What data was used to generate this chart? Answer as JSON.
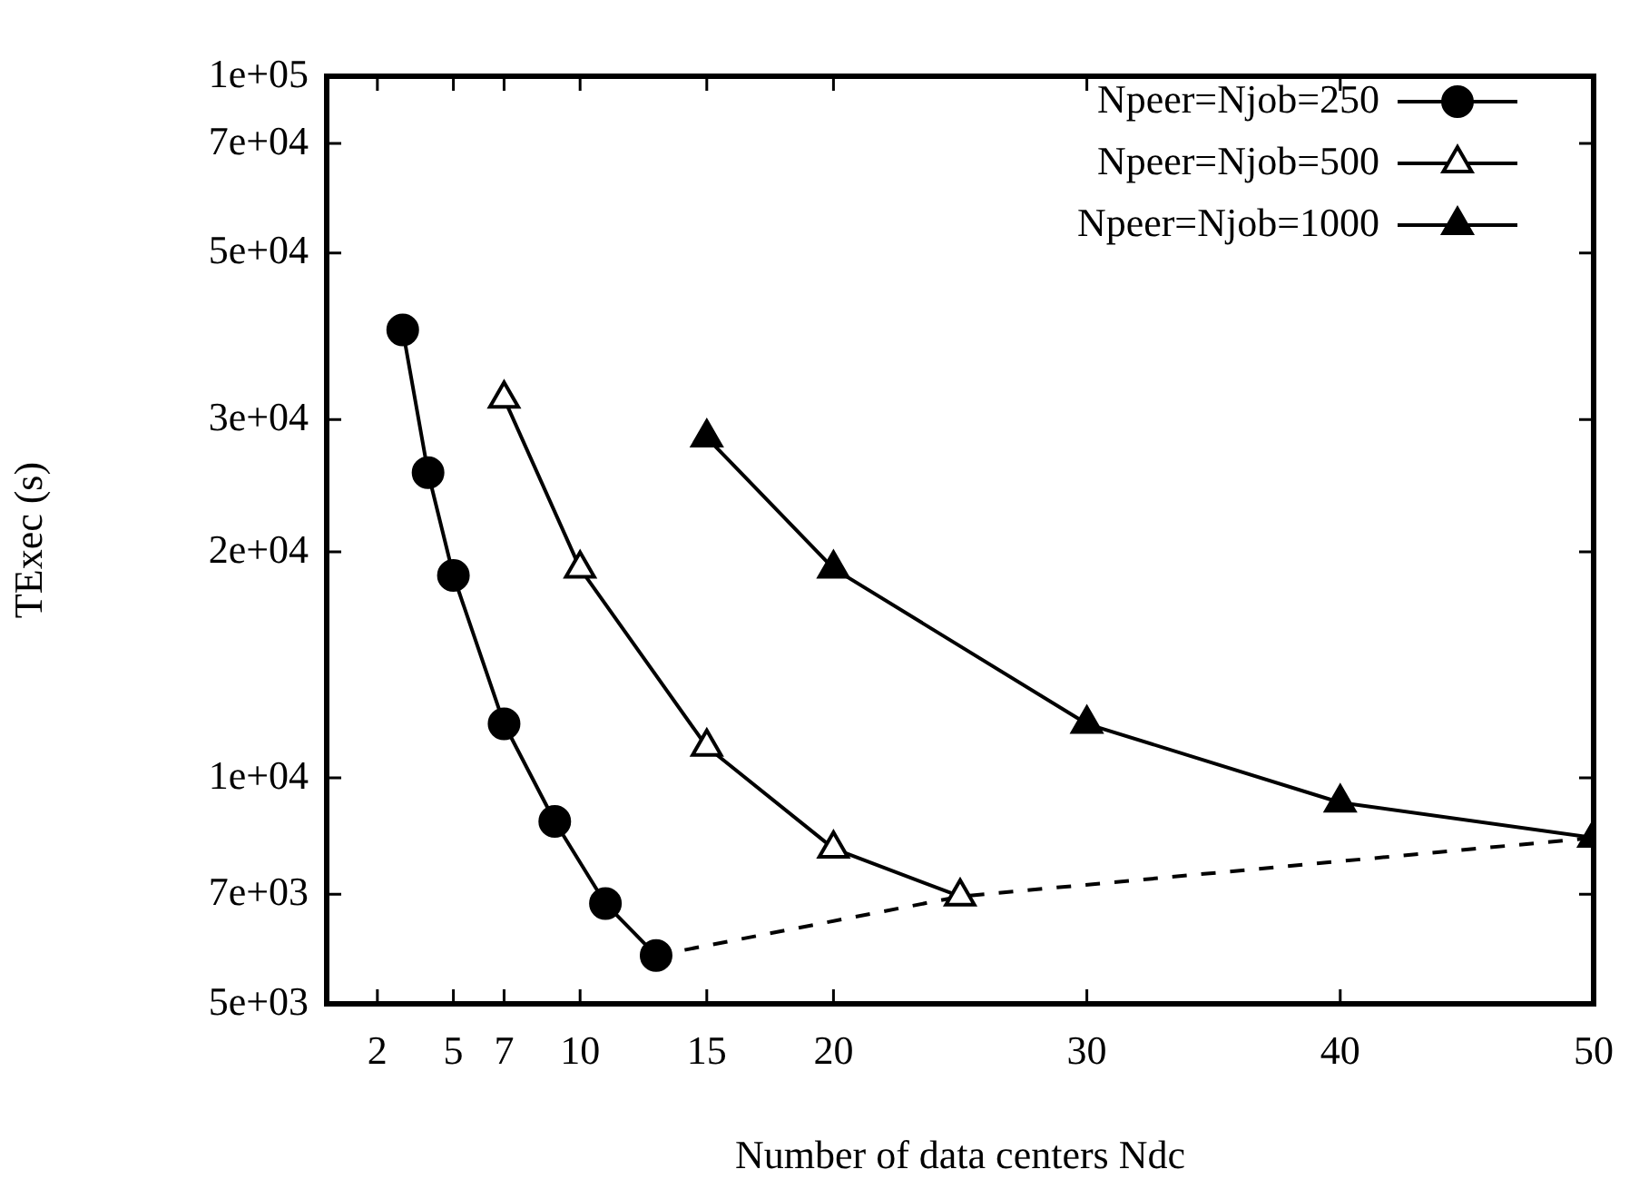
{
  "chart_data": {
    "type": "line",
    "xlabel": "Number of data centers Ndc",
    "ylabel": "TExec (s)",
    "xlim": [
      0,
      50
    ],
    "xticks": [
      2,
      5,
      7,
      10,
      15,
      20,
      30,
      40,
      50
    ],
    "ylim": [
      5000,
      86000
    ],
    "log": "y",
    "yticks": [
      {
        "value": 5000,
        "label": "5e+03"
      },
      {
        "value": 7000,
        "label": "7e+03"
      },
      {
        "value": 10000,
        "label": "1e+04"
      },
      {
        "value": 20000,
        "label": "2e+04"
      },
      {
        "value": 30000,
        "label": "3e+04"
      },
      {
        "value": 50000,
        "label": "5e+04"
      },
      {
        "value": 70000,
        "label": "7e+04"
      },
      {
        "value": 86000,
        "label": "1e+05"
      }
    ],
    "grid": false,
    "legend": "top right",
    "series": [
      {
        "name": "Npeer=Njob=250",
        "color": "#000000",
        "marker": "circle",
        "line_style": "solid",
        "x": [
          3,
          4,
          5,
          7,
          9,
          11,
          13
        ],
        "values": [
          39500,
          25500,
          18600,
          11800,
          8750,
          6800,
          5800
        ]
      },
      {
        "name": "Npeer=Njob=500",
        "color": "#000000",
        "marker": "triangle-open",
        "line_style": "solid",
        "x": [
          7,
          10,
          15,
          20,
          25
        ],
        "values": [
          32000,
          19000,
          11000,
          8050,
          6950
        ]
      },
      {
        "name": "Npeer=Njob=1000",
        "color": "#000000",
        "marker": "triangle",
        "line_style": "solid",
        "x": [
          15,
          20,
          30,
          40,
          50
        ],
        "values": [
          28400,
          19000,
          11800,
          9270,
          8320
        ]
      },
      {
        "color": "#000000",
        "marker": "none",
        "line_style": "dashed",
        "x": [
          13,
          25,
          50
        ],
        "values": [
          5800,
          6950,
          8320
        ]
      }
    ]
  }
}
